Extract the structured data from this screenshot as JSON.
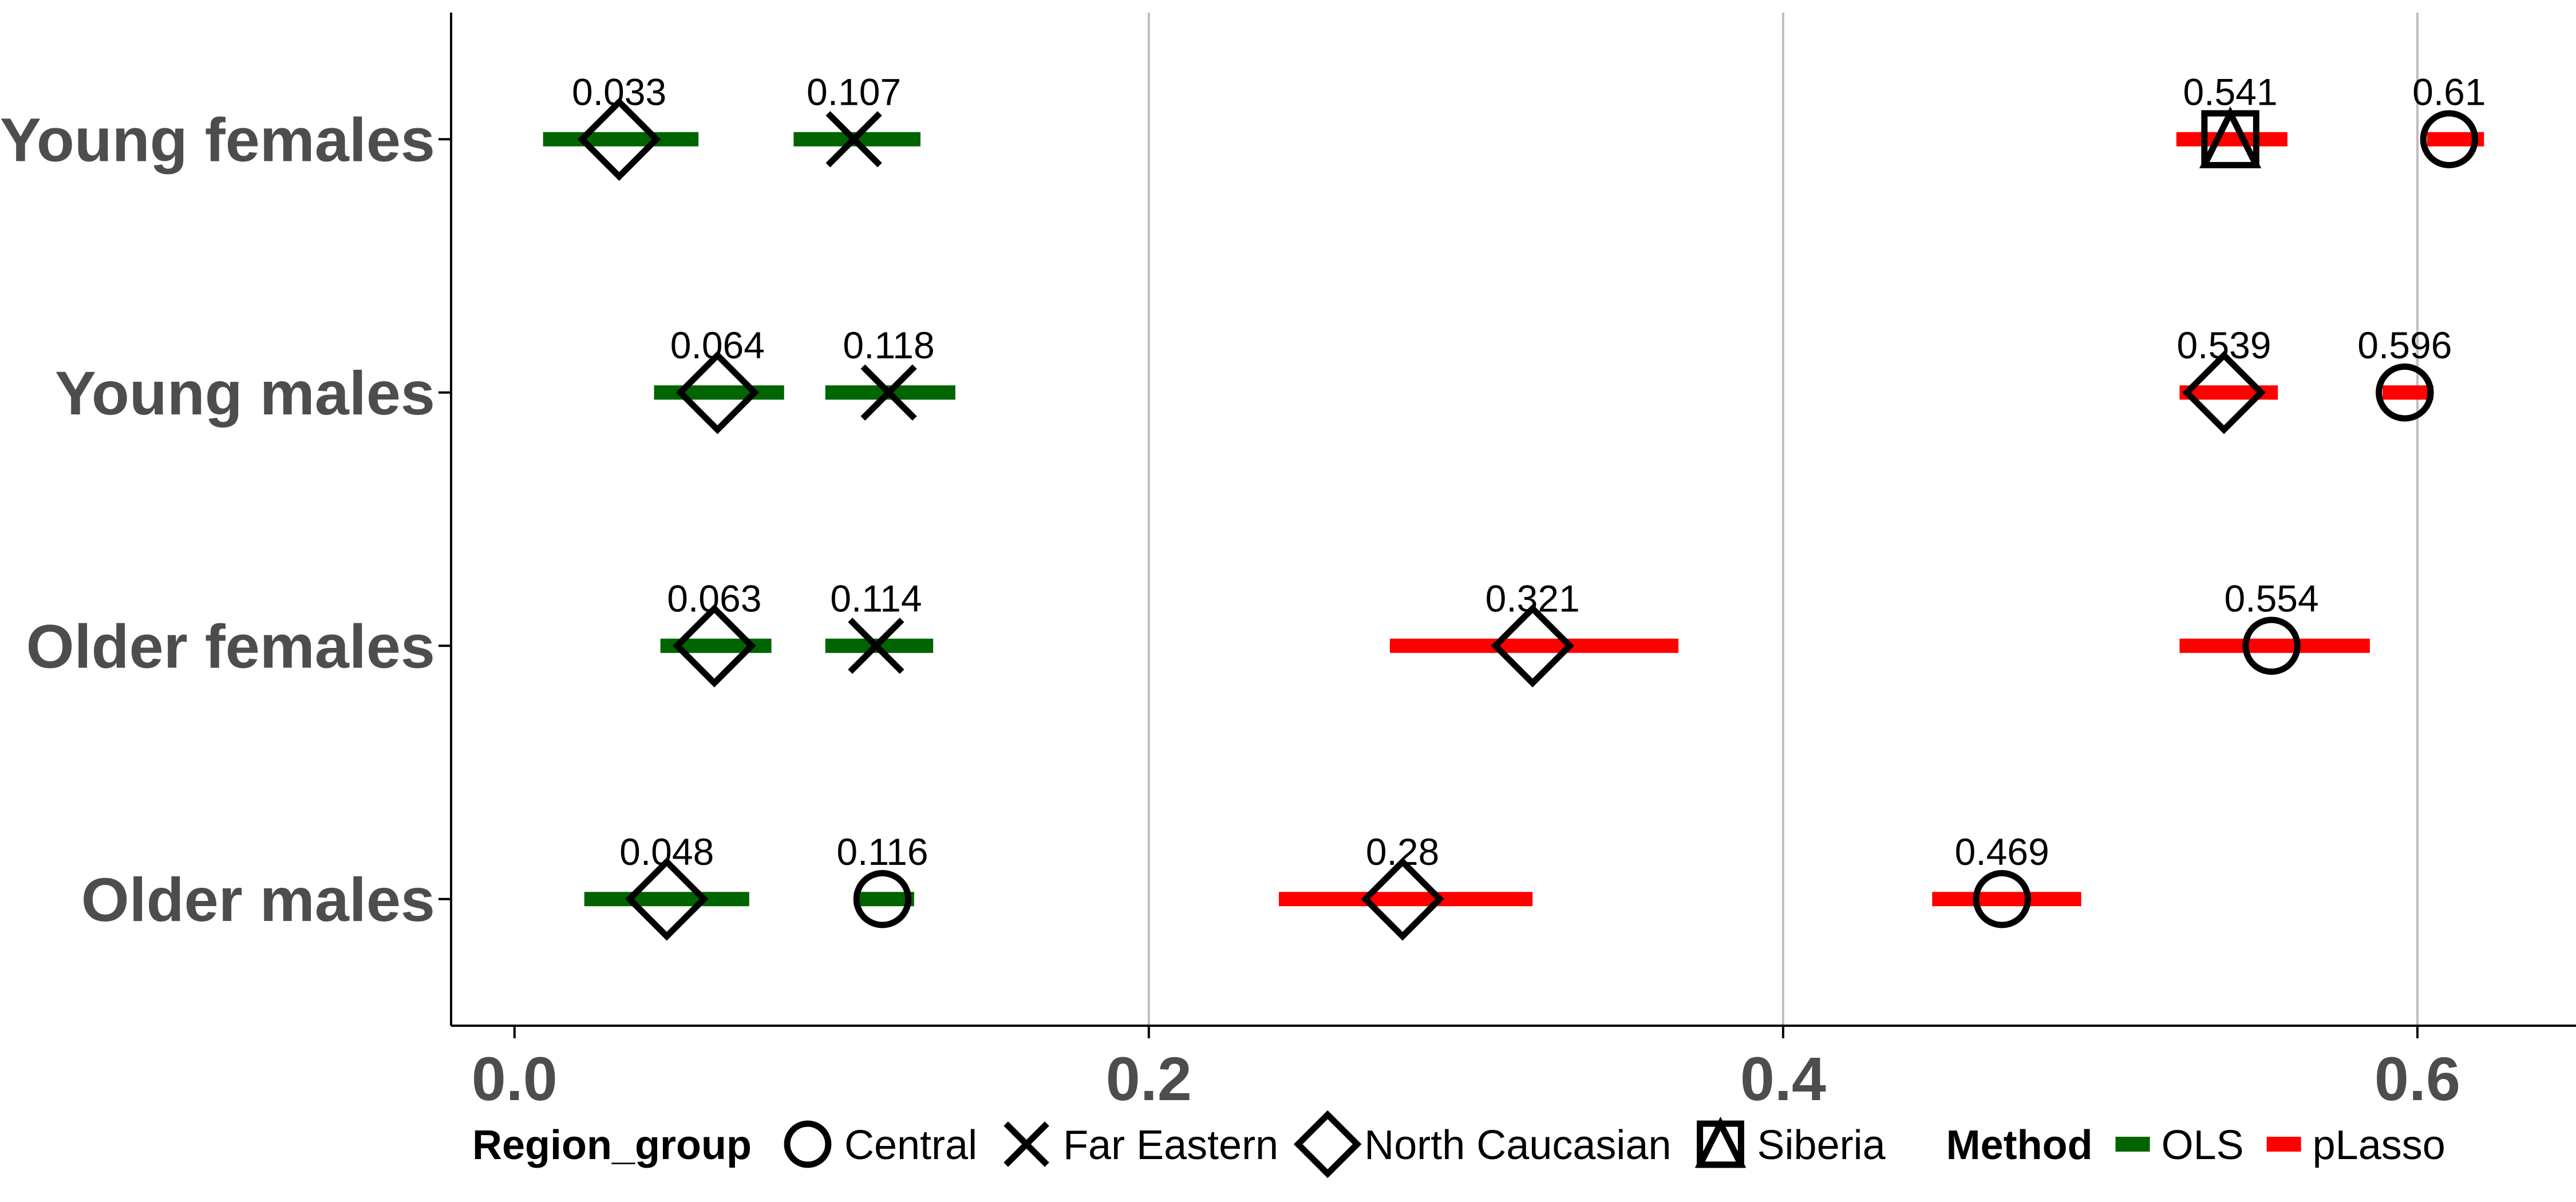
{
  "chart_data": {
    "type": "scatter",
    "title": "",
    "xlabel": "",
    "ylabel": "",
    "xlim": [
      -0.02,
      0.65
    ],
    "x_ticks": [
      {
        "value": 0.0,
        "label": "0.0"
      },
      {
        "value": 0.2,
        "label": "0.2"
      },
      {
        "value": 0.4,
        "label": "0.4"
      },
      {
        "value": 0.6,
        "label": "0.6"
      }
    ],
    "grid": "vertical major lines",
    "categories": [
      "Young females",
      "Young males",
      "Older females",
      "Older males"
    ],
    "colors": {
      "OLS": "#006400",
      "pLasso": "#ff0000"
    },
    "legend": {
      "position": "bottom",
      "shape_title": "Region_group",
      "shapes": [
        {
          "key": "Central",
          "shape": "circle"
        },
        {
          "key": "Far Eastern",
          "shape": "x"
        },
        {
          "key": "North Caucasian",
          "shape": "diamond"
        },
        {
          "key": "Siberia",
          "shape": "triangle-square"
        }
      ],
      "color_title": "Method",
      "colors": [
        {
          "key": "OLS",
          "color": "#006400"
        },
        {
          "key": "pLasso",
          "color": "#ff0000"
        }
      ]
    },
    "points": [
      {
        "category": "Young females",
        "method": "OLS",
        "region": "North Caucasian",
        "value": 0.033,
        "low": 0.009,
        "high": 0.058,
        "label": "0.033"
      },
      {
        "category": "Young females",
        "method": "OLS",
        "region": "Far Eastern",
        "value": 0.107,
        "low": 0.088,
        "high": 0.128,
        "label": "0.107"
      },
      {
        "category": "Young females",
        "method": "pLasso",
        "region": "Siberia",
        "value": 0.541,
        "low": 0.524,
        "high": 0.559,
        "label": "0.541"
      },
      {
        "category": "Young females",
        "method": "pLasso",
        "region": "Central",
        "value": 0.61,
        "low": 0.603,
        "high": 0.621,
        "label": "0.61"
      },
      {
        "category": "Young males",
        "method": "OLS",
        "region": "North Caucasian",
        "value": 0.064,
        "low": 0.044,
        "high": 0.085,
        "label": "0.064"
      },
      {
        "category": "Young males",
        "method": "OLS",
        "region": "Far Eastern",
        "value": 0.118,
        "low": 0.098,
        "high": 0.139,
        "label": "0.118"
      },
      {
        "category": "Young males",
        "method": "pLasso",
        "region": "North Caucasian",
        "value": 0.539,
        "low": 0.525,
        "high": 0.556,
        "label": "0.539"
      },
      {
        "category": "Young males",
        "method": "pLasso",
        "region": "Central",
        "value": 0.596,
        "low": 0.589,
        "high": 0.605,
        "label": "0.596"
      },
      {
        "category": "Older females",
        "method": "OLS",
        "region": "North Caucasian",
        "value": 0.063,
        "low": 0.046,
        "high": 0.081,
        "label": "0.063"
      },
      {
        "category": "Older females",
        "method": "OLS",
        "region": "Far Eastern",
        "value": 0.114,
        "low": 0.098,
        "high": 0.132,
        "label": "0.114"
      },
      {
        "category": "Older females",
        "method": "pLasso",
        "region": "North Caucasian",
        "value": 0.321,
        "low": 0.276,
        "high": 0.367,
        "label": "0.321"
      },
      {
        "category": "Older females",
        "method": "pLasso",
        "region": "Central",
        "value": 0.554,
        "low": 0.525,
        "high": 0.585,
        "label": "0.554"
      },
      {
        "category": "Older males",
        "method": "OLS",
        "region": "North Caucasian",
        "value": 0.048,
        "low": 0.022,
        "high": 0.074,
        "label": "0.048"
      },
      {
        "category": "Older males",
        "method": "OLS",
        "region": "Central",
        "value": 0.116,
        "low": 0.107,
        "high": 0.126,
        "label": "0.116"
      },
      {
        "category": "Older males",
        "method": "pLasso",
        "region": "North Caucasian",
        "value": 0.28,
        "low": 0.241,
        "high": 0.321,
        "label": "0.28"
      },
      {
        "category": "Older males",
        "method": "pLasso",
        "region": "Central",
        "value": 0.469,
        "low": 0.447,
        "high": 0.494,
        "label": "0.469"
      }
    ]
  }
}
